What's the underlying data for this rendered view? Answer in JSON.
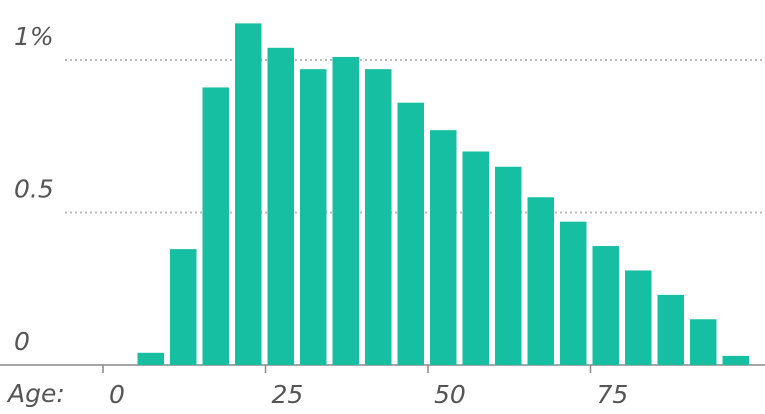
{
  "chart_data": {
    "type": "histogram",
    "x_label": "Age:",
    "bins": [
      5,
      10,
      15,
      20,
      25,
      30,
      35,
      40,
      45,
      50,
      55,
      60,
      65,
      70,
      75,
      80,
      85,
      90,
      95,
      100
    ],
    "values": [
      0.04,
      0.38,
      0.91,
      1.12,
      1.04,
      0.97,
      1.01,
      0.97,
      0.86,
      0.77,
      0.7,
      0.65,
      0.55,
      0.47,
      0.39,
      0.31,
      0.23,
      0.15,
      0.03
    ],
    "color": "#17bfa2",
    "xlim": [
      0,
      100
    ],
    "xticks": [
      0,
      25,
      50,
      75
    ],
    "ylim": [
      0,
      1.15
    ],
    "yticks": [
      0,
      0.5,
      {
        "value": 1,
        "label": "1%"
      }
    ],
    "grid": true
  }
}
